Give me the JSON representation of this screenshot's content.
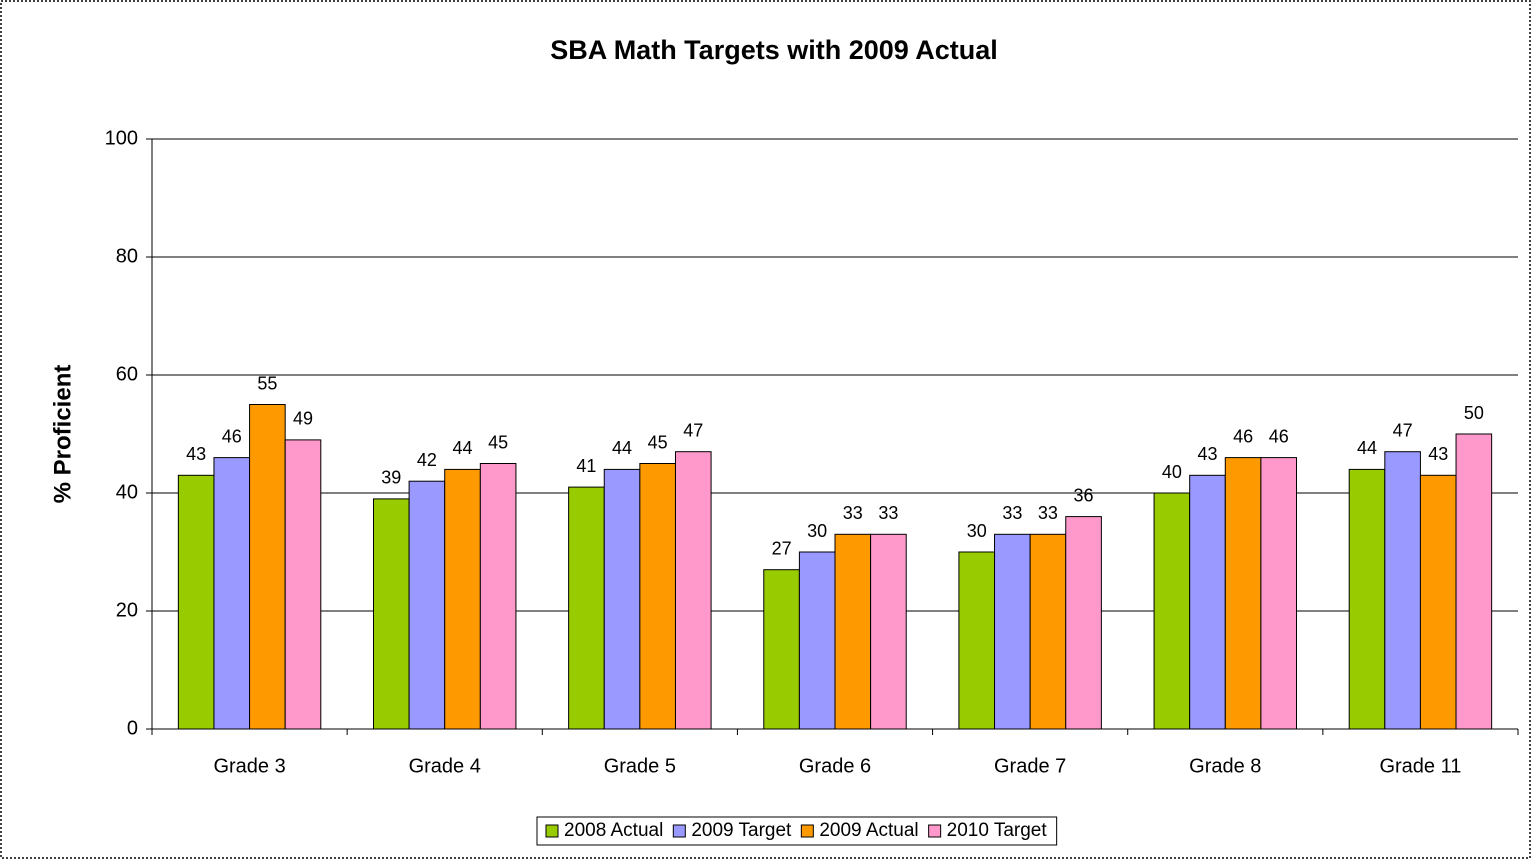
{
  "chart_data": {
    "type": "bar",
    "title": "SBA Math Targets with 2009 Actual",
    "y_label": "% Proficient",
    "categories": [
      "Grade 3",
      "Grade 4",
      "Grade 5",
      "Grade 6",
      "Grade 7",
      "Grade 8",
      "Grade 11"
    ],
    "series": [
      {
        "name": "2008 Actual",
        "color": "#99cc00",
        "values": [
          43,
          39,
          41,
          27,
          30,
          40,
          44
        ]
      },
      {
        "name": "2009 Target",
        "color": "#9999ff",
        "values": [
          46,
          42,
          44,
          30,
          33,
          43,
          47
        ]
      },
      {
        "name": "2009 Actual",
        "color": "#ff9900",
        "values": [
          55,
          44,
          45,
          33,
          33,
          46,
          43
        ]
      },
      {
        "name": "2010 Target",
        "color": "#ff99cc",
        "values": [
          49,
          45,
          47,
          33,
          36,
          46,
          50
        ]
      }
    ],
    "ylim": [
      0,
      100
    ],
    "yticks": [
      0,
      20,
      40,
      60,
      80,
      100
    ],
    "grid": true,
    "legend": "bottom"
  }
}
